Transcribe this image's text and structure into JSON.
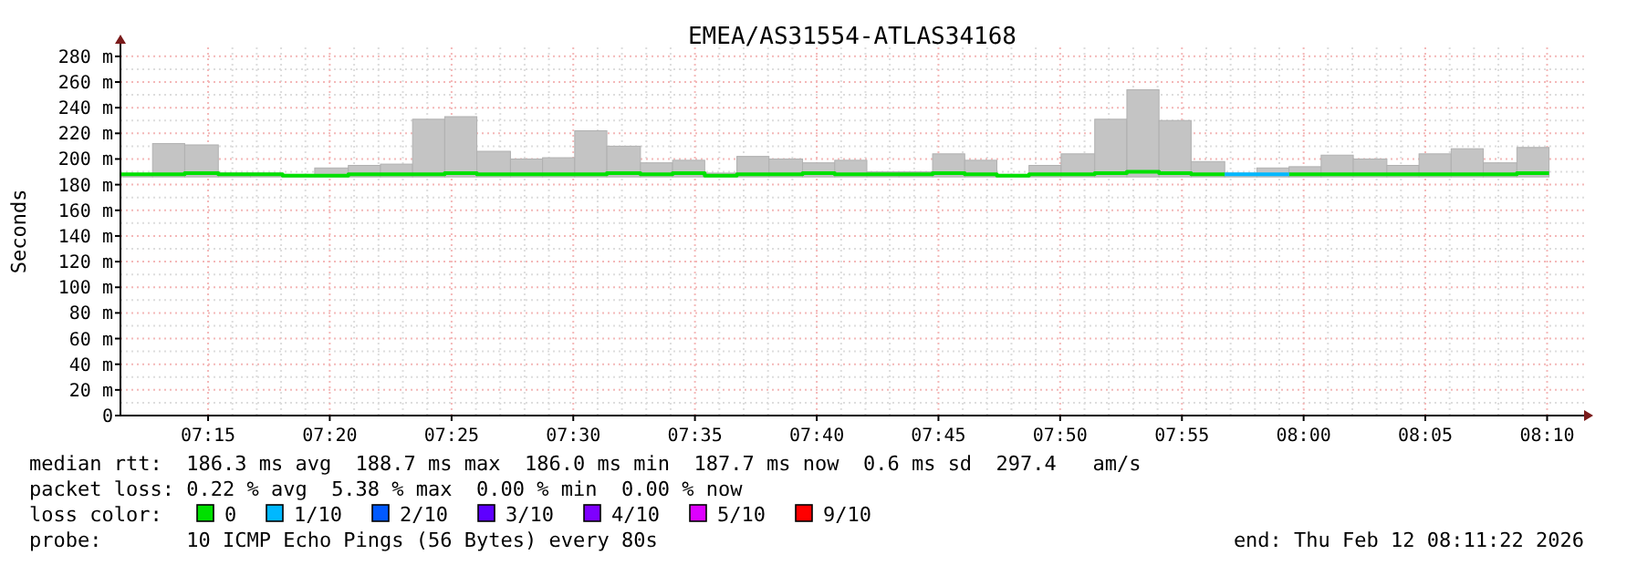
{
  "chart_data": {
    "type": "step",
    "title": "EMEA/AS31554-ATLAS34168",
    "ylabel": "Seconds",
    "legend_title": "loss color:",
    "legend": "bottom",
    "grid": true,
    "x": [
      7.19,
      7.212,
      7.234,
      7.257,
      7.279,
      7.301,
      7.323,
      7.346,
      7.368,
      7.39,
      7.412,
      7.434,
      7.457,
      7.479,
      7.501,
      7.523,
      7.546,
      7.568,
      7.59,
      7.612,
      7.634,
      7.657,
      7.679,
      7.701,
      7.723,
      7.746,
      7.768,
      7.79,
      7.812,
      7.834,
      7.857,
      7.879,
      7.901,
      7.923,
      7.946,
      7.968,
      7.99,
      8.012,
      8.034,
      8.057,
      8.079,
      8.101,
      8.123,
      8.146,
      8.168
    ],
    "xlim": [
      7.19,
      8.192
    ],
    "xticks": [
      {
        "value": 7.25,
        "label": "07:15"
      },
      {
        "value": 7.3333,
        "label": "07:20"
      },
      {
        "value": 7.4167,
        "label": "07:25"
      },
      {
        "value": 7.5,
        "label": "07:30"
      },
      {
        "value": 7.5833,
        "label": "07:35"
      },
      {
        "value": 7.6667,
        "label": "07:40"
      },
      {
        "value": 7.75,
        "label": "07:45"
      },
      {
        "value": 7.8333,
        "label": "07:50"
      },
      {
        "value": 7.9167,
        "label": "07:55"
      },
      {
        "value": 8,
        "label": "08:00"
      },
      {
        "value": 8.0833,
        "label": "08:05"
      },
      {
        "value": 8.1667,
        "label": "08:10"
      }
    ],
    "ylim": [
      0,
      287
    ],
    "yticks": [
      {
        "value": 0,
        "label": "0"
      },
      {
        "value": 20,
        "label": "20 m"
      },
      {
        "value": 40,
        "label": "40 m"
      },
      {
        "value": 60,
        "label": "60 m"
      },
      {
        "value": 80,
        "label": "80 m"
      },
      {
        "value": 100,
        "label": "100 m"
      },
      {
        "value": 120,
        "label": "120 m"
      },
      {
        "value": 140,
        "label": "140 m"
      },
      {
        "value": 160,
        "label": "160 m"
      },
      {
        "value": 180,
        "label": "180 m"
      },
      {
        "value": 200,
        "label": "200 m"
      },
      {
        "value": 220,
        "label": "220 m"
      },
      {
        "value": 240,
        "label": "240 m"
      },
      {
        "value": 260,
        "label": "260 m"
      },
      {
        "value": 280,
        "label": "280 m"
      }
    ],
    "series": [
      {
        "name": "0",
        "color": "#00e000",
        "values": [
          188,
          188,
          189,
          188,
          188,
          187,
          187,
          188,
          188,
          188,
          189,
          188,
          188,
          188,
          188,
          189,
          188,
          189,
          187,
          188,
          188,
          189,
          188,
          188,
          188,
          189,
          188,
          187,
          188,
          188,
          189,
          190,
          189,
          188,
          188,
          null,
          188,
          188,
          188,
          188,
          188,
          188,
          188,
          189,
          189
        ],
        "lower": [
          186,
          186,
          186,
          186,
          186,
          186,
          186,
          186,
          186,
          186,
          186,
          186,
          186,
          186,
          186,
          186,
          186,
          186,
          186,
          186,
          186,
          186,
          186,
          186,
          186,
          186,
          186,
          186,
          186,
          186,
          186,
          186,
          186,
          186,
          186,
          186,
          186,
          186,
          186,
          186,
          186,
          186,
          186,
          186,
          186
        ],
        "upper": [
          188,
          212,
          211,
          189,
          189,
          188,
          193,
          195,
          196,
          231,
          233,
          206,
          200,
          201,
          222,
          210,
          197,
          199,
          189,
          202,
          200,
          197,
          199,
          190,
          190,
          204,
          199,
          188,
          195,
          204,
          231,
          254,
          230,
          198,
          189,
          193,
          194,
          203,
          200,
          195,
          204,
          208,
          197,
          209,
          209
        ]
      },
      {
        "name": "1/10",
        "color": "#00b8ff",
        "values": [
          null,
          null,
          null,
          null,
          null,
          null,
          null,
          null,
          null,
          null,
          null,
          null,
          null,
          null,
          null,
          null,
          null,
          null,
          null,
          null,
          null,
          null,
          null,
          null,
          null,
          null,
          null,
          null,
          null,
          null,
          null,
          null,
          null,
          null,
          188,
          188,
          188,
          null,
          null,
          null,
          null,
          null,
          null,
          null,
          null
        ]
      },
      {
        "name": "2/10",
        "color": "#0059ff",
        "values": [
          null,
          null,
          null,
          null,
          null,
          null,
          null,
          null,
          null,
          null,
          null,
          null,
          null,
          null,
          null,
          null,
          null,
          null,
          null,
          null,
          null,
          null,
          null,
          null,
          null,
          null,
          null,
          null,
          null,
          null,
          null,
          null,
          null,
          null,
          null,
          null,
          null,
          null,
          null,
          null,
          null,
          null,
          null,
          null,
          null
        ]
      },
      {
        "name": "3/10",
        "color": "#5e00ff",
        "values": [
          null,
          null,
          null,
          null,
          null,
          null,
          null,
          null,
          null,
          null,
          null,
          null,
          null,
          null,
          null,
          null,
          null,
          null,
          null,
          null,
          null,
          null,
          null,
          null,
          null,
          null,
          null,
          null,
          null,
          null,
          null,
          null,
          null,
          null,
          null,
          null,
          null,
          null,
          null,
          null,
          null,
          null,
          null,
          null,
          null
        ]
      },
      {
        "name": "4/10",
        "color": "#7e00ff",
        "values": [
          null,
          null,
          null,
          null,
          null,
          null,
          null,
          null,
          null,
          null,
          null,
          null,
          null,
          null,
          null,
          null,
          null,
          null,
          null,
          null,
          null,
          null,
          null,
          null,
          null,
          null,
          null,
          null,
          null,
          null,
          null,
          null,
          null,
          null,
          null,
          null,
          null,
          null,
          null,
          null,
          null,
          null,
          null,
          null,
          null
        ]
      },
      {
        "name": "5/10",
        "color": "#dd00ff",
        "values": [
          null,
          null,
          null,
          null,
          null,
          null,
          null,
          null,
          null,
          null,
          null,
          null,
          null,
          null,
          null,
          null,
          null,
          null,
          null,
          null,
          null,
          null,
          null,
          null,
          null,
          null,
          null,
          null,
          null,
          null,
          null,
          null,
          null,
          null,
          null,
          null,
          null,
          null,
          null,
          null,
          null,
          null,
          null,
          null,
          null
        ]
      },
      {
        "name": "9/10",
        "color": "#ff0000",
        "values": [
          null,
          null,
          null,
          null,
          null,
          null,
          null,
          null,
          null,
          null,
          null,
          null,
          null,
          null,
          null,
          null,
          null,
          null,
          null,
          null,
          null,
          null,
          null,
          null,
          null,
          null,
          null,
          null,
          null,
          null,
          null,
          null,
          null,
          null,
          null,
          null,
          null,
          null,
          null,
          null,
          null,
          null,
          null,
          null,
          null
        ]
      }
    ],
    "annotations": [
      "median rtt:  186.3 ms avg  188.7 ms max  186.0 ms min  187.7 ms now  0.6 ms sd  297.4   am/s",
      "packet loss: 0.22 % avg  5.38 % max  0.00 % min  0.00 % now",
      "probe:       10 ICMP Echo Pings (56 Bytes) every 80s",
      "end: Thu Feb 12 08:11:22 2026"
    ]
  }
}
